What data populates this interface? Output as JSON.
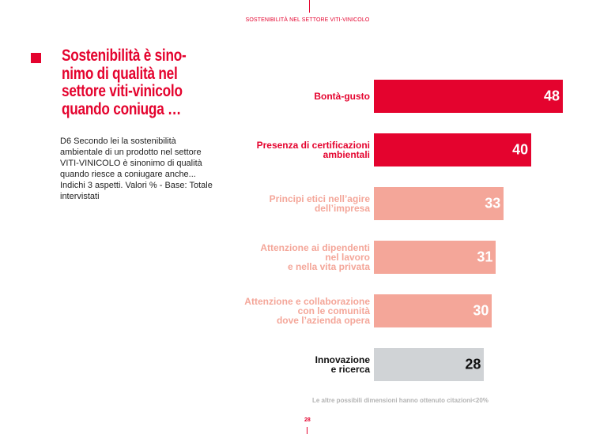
{
  "header": "SOSTENIBILITÀ NEL SETTORE VITI-VINICOLO",
  "title": "Sostenibilità è sino-nimo di qualità nel settore viti-vinicolo quando coniuga …",
  "question": "D6 Secondo lei la sostenibilità ambientale di un prodotto nel settore VITI-VINICOLO è sinonimo di qualità quando riesce a coniugare anche... Indichi 3 aspetti. Valori % - Base: Totale intervistati",
  "note": "Le altre possibili dimensioni hanno ottenuto citazioni<20%",
  "page_number": "28",
  "colors": {
    "accent": "#e4032e",
    "light": "#f4a699",
    "grey": "#d0d3d6",
    "dark_text": "#111111"
  },
  "chart_data": {
    "type": "bar",
    "orientation": "horizontal",
    "categories": [
      "Bontà-gusto",
      "Presenza di certificazioni ambientali",
      "Principi etici nell'agire dell'impresa",
      "Attenzione ai dipendenti nel lavoro e nella vita privata",
      "Attenzione e collaborazione con le comunità dove l'azienda opera",
      "Innovazione e ricerca"
    ],
    "labels_lines": [
      [
        "Bontà-gusto"
      ],
      [
        "Presenza di certificazioni",
        "ambientali"
      ],
      [
        "Principi etici nell’agire",
        "dell’impresa"
      ],
      [
        "Attenzione ai dipendenti",
        "nel lavoro",
        "e nella vita privata"
      ],
      [
        "Attenzione e collaborazione",
        "con le comunità",
        "dove l’azienda opera"
      ],
      [
        "Innovazione",
        "e ricerca"
      ]
    ],
    "values": [
      48,
      40,
      33,
      31,
      30,
      28
    ],
    "bar_colors": [
      "#e4032e",
      "#e4032e",
      "#f4a699",
      "#f4a699",
      "#f4a699",
      "#d0d3d6"
    ],
    "label_colors": [
      "#e4032e",
      "#e4032e",
      "#f4a699",
      "#f4a699",
      "#f4a699",
      "#111111"
    ],
    "value_colors": [
      "#ffffff",
      "#ffffff",
      "#ffffff",
      "#ffffff",
      "#ffffff",
      "#111111"
    ],
    "unit": "%",
    "grid": false
  }
}
